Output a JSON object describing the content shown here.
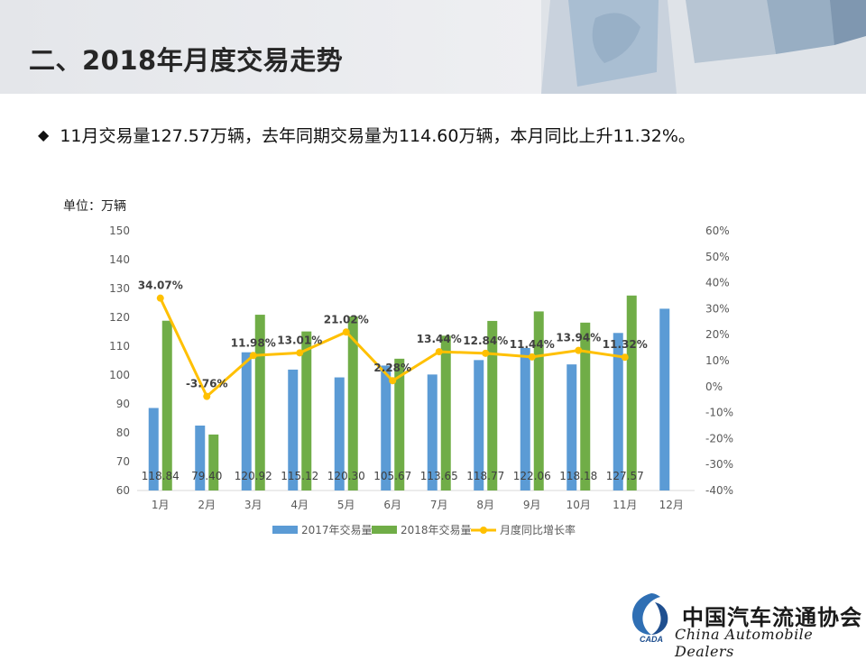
{
  "header": {
    "title": "二、2018年月度交易走势"
  },
  "summary": {
    "bullet_icon": "diamond-bullet-icon",
    "text": "11月交易量127.57万辆，去年同期交易量为114.60万辆，本月同比上升11.32%。"
  },
  "chart_unit": "单位：万辆",
  "chart_data": {
    "type": "bar",
    "categories": [
      "1月",
      "2月",
      "3月",
      "4月",
      "5月",
      "6月",
      "7月",
      "8月",
      "9月",
      "10月",
      "11月",
      "12月"
    ],
    "series": [
      {
        "name": "2017年交易量",
        "type": "bar",
        "color": "#5b9bd5",
        "values": [
          88.6,
          82.5,
          107.9,
          101.9,
          99.2,
          103.3,
          100.2,
          105.2,
          109.4,
          103.7,
          114.6,
          123.0
        ]
      },
      {
        "name": "2018年交易量",
        "type": "bar",
        "color": "#70ad47",
        "values": [
          118.84,
          79.4,
          120.92,
          115.12,
          120.3,
          105.67,
          113.65,
          118.77,
          122.06,
          118.18,
          127.57,
          null
        ],
        "labels": [
          "118.84",
          "79.40",
          "120.92",
          "115.12",
          "120.30",
          "105.67",
          "113.65",
          "118.77",
          "122.06",
          "118.18",
          "127.57",
          ""
        ]
      },
      {
        "name": "月度同比增长率",
        "type": "line",
        "axis": "right",
        "color": "#ffc000",
        "values": [
          34.07,
          -3.76,
          11.98,
          13.01,
          21.02,
          2.28,
          13.44,
          12.84,
          11.44,
          13.94,
          11.32,
          null
        ],
        "labels": [
          "34.07%",
          "-3.76%",
          "11.98%",
          "13.01%",
          "21.02%",
          "2.28%",
          "13.44%",
          "12.84%",
          "11.44%",
          "13.94%",
          "11.32%",
          ""
        ]
      }
    ],
    "y_left": {
      "min": 60,
      "max": 150,
      "ticks": [
        "150",
        "140",
        "130",
        "120",
        "110",
        "100",
        "90",
        "80",
        "70",
        "60"
      ]
    },
    "y_right": {
      "min": -40,
      "max": 60,
      "ticks": [
        "60%",
        "50%",
        "40%",
        "30%",
        "20%",
        "10%",
        "0%",
        "-10%",
        "-20%",
        "-30%",
        "-40%"
      ]
    },
    "legend_position": "bottom",
    "grid": false
  },
  "footer": {
    "org_cn": "中国汽车流通协会",
    "org_en": "China  Automobile Dealers",
    "logo_icon": "cada-logo-icon",
    "logo_text": "CADA"
  }
}
